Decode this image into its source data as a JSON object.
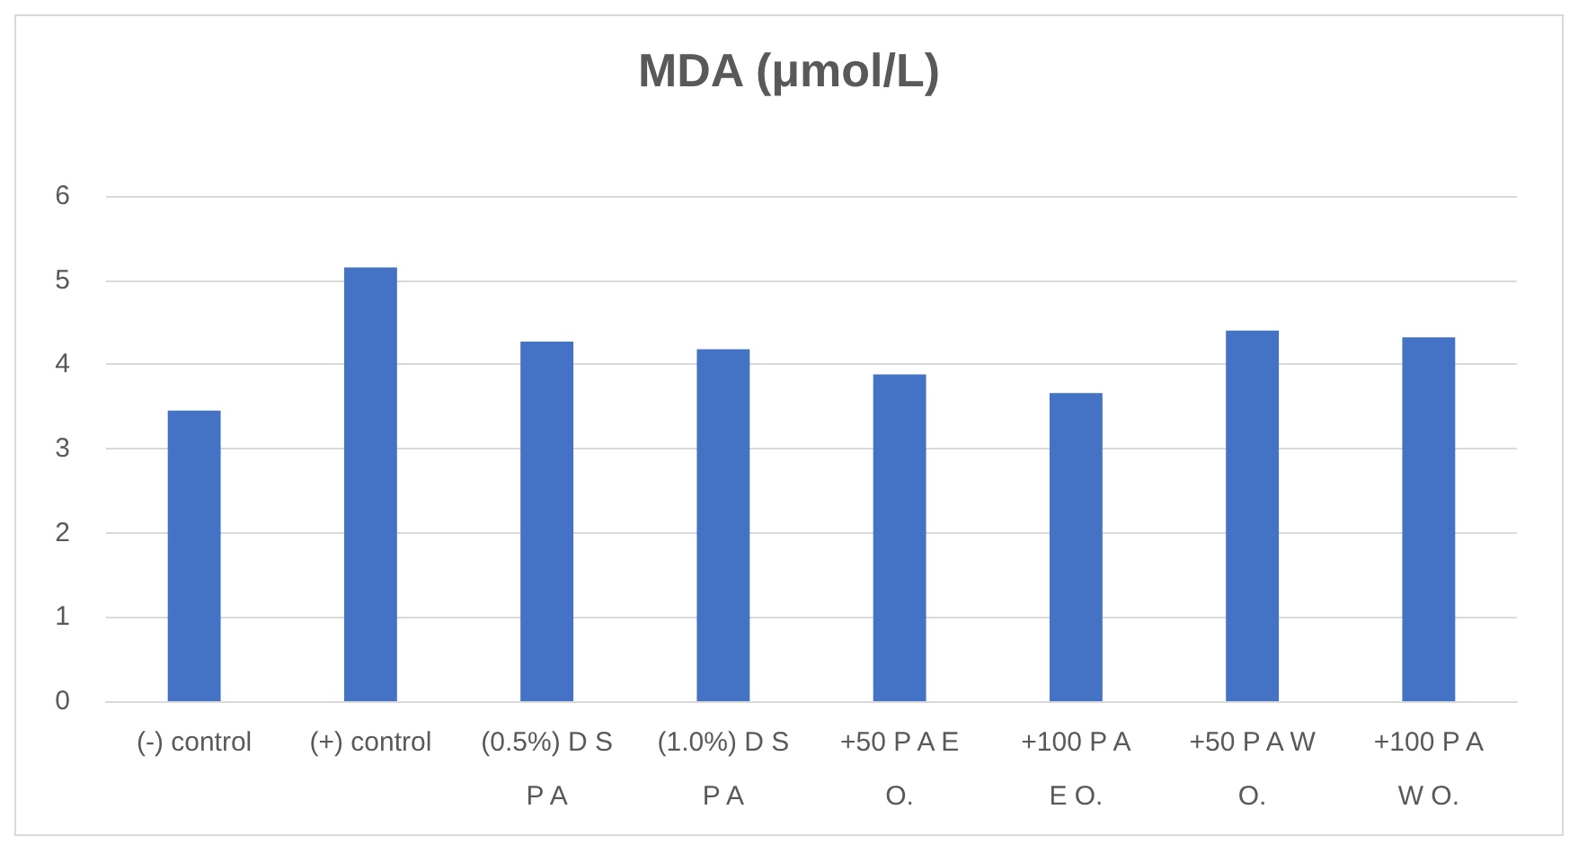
{
  "chart_data": {
    "type": "bar",
    "title": "MDA (μmol/L)",
    "categories": [
      "(-) control",
      "(+) control",
      "(0.5%) D S\nP A",
      "(1.0%) D S\nP A",
      "+50 P A E\nO.",
      "+100 P A\nE O.",
      "+50 P A W\nO.",
      "+100 P A\nW O."
    ],
    "values": [
      3.45,
      5.15,
      4.27,
      4.18,
      3.88,
      3.66,
      4.4,
      4.32
    ],
    "color": "#4472c4",
    "ylim": [
      0,
      6
    ],
    "yticks": [
      0,
      1,
      2,
      3,
      4,
      5,
      6
    ],
    "grid": "y"
  }
}
